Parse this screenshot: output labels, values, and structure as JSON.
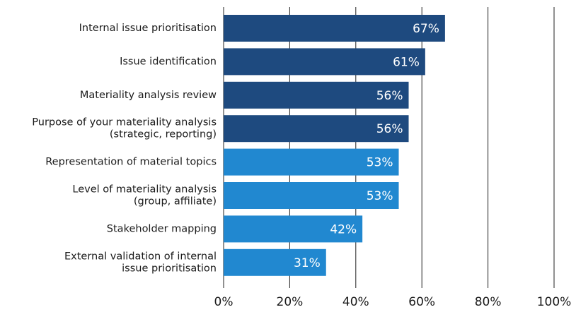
{
  "chart_data": {
    "type": "hbar",
    "categories": [
      "Internal issue prioritisation",
      "Issue identification",
      "Materiality analysis review",
      "Purpose of your materiality analysis\n(strategic, reporting)",
      "Representation of material topics",
      "Level of materiality analysis\n(group, affiliate)",
      "Stakeholder mapping",
      "External validation of internal\nissue prioritisation"
    ],
    "values": [
      67,
      61,
      56,
      56,
      53,
      53,
      42,
      31
    ],
    "value_labels": [
      "67%",
      "61%",
      "56%",
      "56%",
      "53%",
      "53%",
      "42%",
      "31%"
    ],
    "colors": [
      "#1e4a7f",
      "#1e4a7f",
      "#1e4a7f",
      "#1e4a7f",
      "#2188d0",
      "#2188d0",
      "#2188d0",
      "#2188d0"
    ],
    "xlim": [
      0,
      100
    ],
    "xticks": [
      {
        "value": 0,
        "label": "0%"
      },
      {
        "value": 20,
        "label": "20%"
      },
      {
        "value": 40,
        "label": "40%"
      },
      {
        "value": 60,
        "label": "60%"
      },
      {
        "value": 80,
        "label": "80%"
      },
      {
        "value": 100,
        "label": "100%"
      }
    ],
    "grid": true
  }
}
